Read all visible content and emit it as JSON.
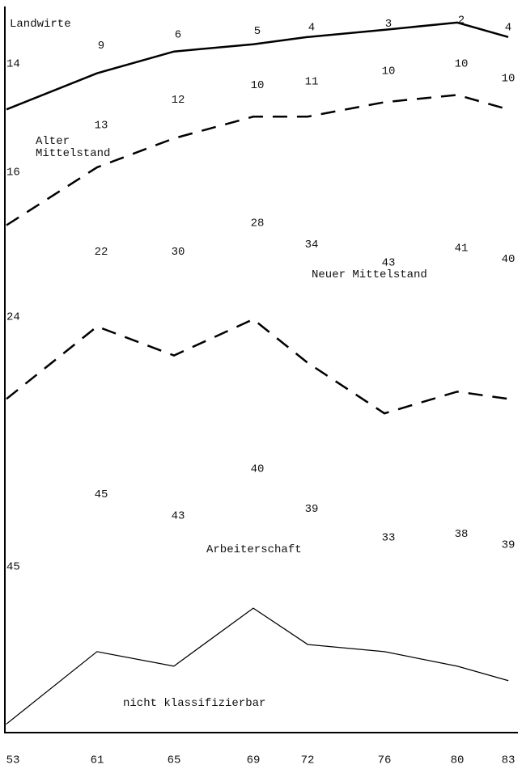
{
  "chart_data": {
    "type": "stacked-line",
    "categories": [
      "53",
      "61",
      "65",
      "69",
      "72",
      "76",
      "80",
      "83"
    ],
    "ylim": [
      0,
      100
    ],
    "series": [
      {
        "name": "Landwirte",
        "color": "#000000",
        "line_style": "solid",
        "values": [
          14,
          9,
          6,
          5,
          4,
          3,
          2,
          4
        ]
      },
      {
        "name": "Alter\nMittelstand",
        "color": "#000000",
        "line_style": "dashed",
        "values": [
          16,
          13,
          12,
          10,
          11,
          10,
          10,
          10
        ]
      },
      {
        "name": "Neuer Mittelstand",
        "color": "#000000",
        "line_style": "dashed",
        "values": [
          24,
          22,
          30,
          28,
          34,
          43,
          41,
          40
        ]
      },
      {
        "name": "Arbeiterschaft",
        "color": "#000000",
        "line_style": "solid",
        "values": [
          45,
          45,
          43,
          40,
          39,
          33,
          38,
          39
        ]
      },
      {
        "name": "nicht klassifizierbar",
        "color": "#ffffff",
        "line_style": "none",
        "values": [
          1,
          11,
          9,
          17,
          12,
          11,
          9,
          7
        ]
      }
    ]
  }
}
